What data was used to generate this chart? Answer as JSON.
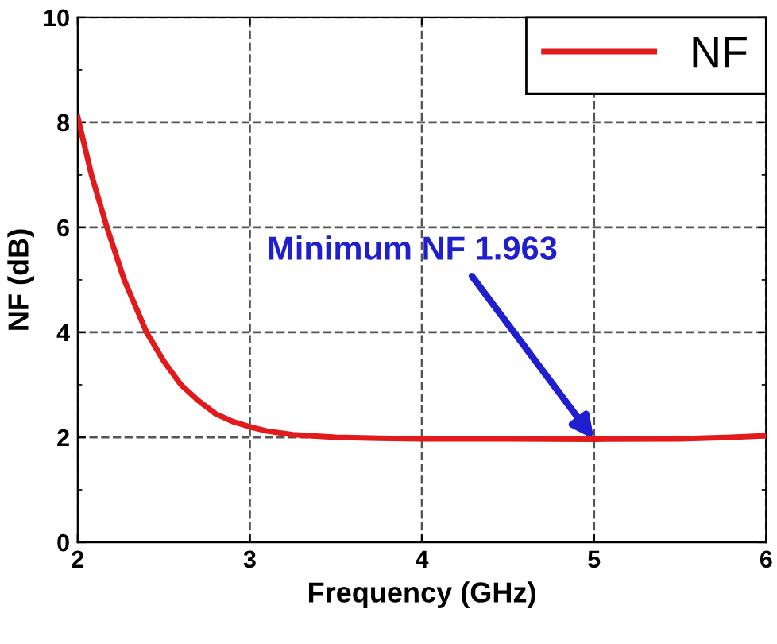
{
  "chart_data": {
    "type": "line",
    "xlabel": "Frequency (GHz)",
    "ylabel": "NF (dB)",
    "x": [
      2.0,
      2.08,
      2.17,
      2.27,
      2.4,
      2.5,
      2.6,
      2.7,
      2.8,
      2.9,
      3.0,
      3.1,
      3.25,
      3.5,
      3.75,
      4.0,
      4.5,
      5.0,
      5.5,
      5.8,
      6.0
    ],
    "series": [
      {
        "name": "NF",
        "color": "#e31a1c",
        "values": [
          8.1,
          7.0,
          6.0,
          5.0,
          4.0,
          3.45,
          3.0,
          2.7,
          2.45,
          2.3,
          2.2,
          2.12,
          2.05,
          2.0,
          1.98,
          1.97,
          1.97,
          1.963,
          1.97,
          2.0,
          2.03
        ]
      }
    ],
    "xlim": [
      2,
      6
    ],
    "ylim": [
      0,
      10
    ],
    "xticks": [
      2,
      3,
      4,
      5,
      6
    ],
    "yticks": [
      0,
      2,
      4,
      6,
      8,
      10
    ],
    "grid": true,
    "legend": "top right",
    "marker": "none",
    "line_style": "solid",
    "annotations": [
      {
        "text": "Minimum NF 1.963",
        "x": 5,
        "y": 1.963
      }
    ]
  }
}
